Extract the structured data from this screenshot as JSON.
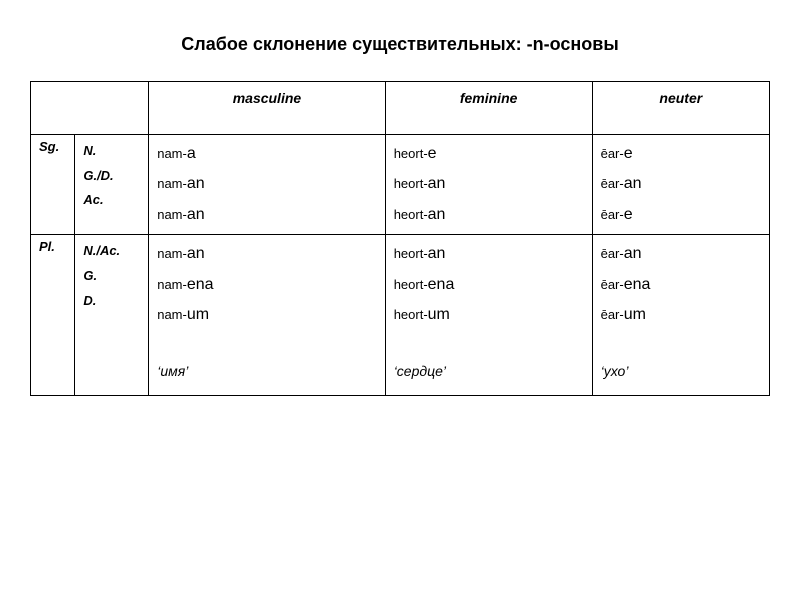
{
  "title": "Слабое склонение существительных: -n-основы",
  "headers": {
    "masculine": "masculine",
    "feminine": "feminine",
    "neuter": "neuter"
  },
  "rows": {
    "sg": {
      "label": "Sg.",
      "cases": [
        "N.",
        "G./D.",
        "Ac."
      ],
      "masc": [
        {
          "stem": "nam-",
          "suf": "a"
        },
        {
          "stem": "nam-",
          "suf": "an"
        },
        {
          "stem": "nam-",
          "suf": "an"
        }
      ],
      "fem": [
        {
          "stem": "heort-",
          "suf": "e"
        },
        {
          "stem": "heort-",
          "suf": "an"
        },
        {
          "stem": "heort-",
          "suf": "an"
        }
      ],
      "neut": [
        {
          "stem": "ēar-",
          "suf": "e"
        },
        {
          "stem": "ēar-",
          "suf": "an"
        },
        {
          "stem": "ēar-",
          "suf": "e"
        }
      ]
    },
    "pl": {
      "label": "Pl.",
      "cases": [
        "N./Ac.",
        "G.",
        "D."
      ],
      "masc": [
        {
          "stem": "nam-",
          "suf": "an"
        },
        {
          "stem": "nam-",
          "suf": "ena"
        },
        {
          "stem": "nam-",
          "suf": "um"
        }
      ],
      "fem": [
        {
          "stem": "heort-",
          "suf": "an"
        },
        {
          "stem": "heort-",
          "suf": "ena"
        },
        {
          "stem": "heort-",
          "suf": "um"
        }
      ],
      "neut": [
        {
          "stem": "ēar-",
          "suf": "an"
        },
        {
          "stem": "ēar-",
          "suf": "ena"
        },
        {
          "stem": "ēar-",
          "suf": "um"
        }
      ],
      "gloss": {
        "masc": "‘имя’",
        "fem": "‘сердце’",
        "neut": "‘ухо’"
      }
    }
  }
}
